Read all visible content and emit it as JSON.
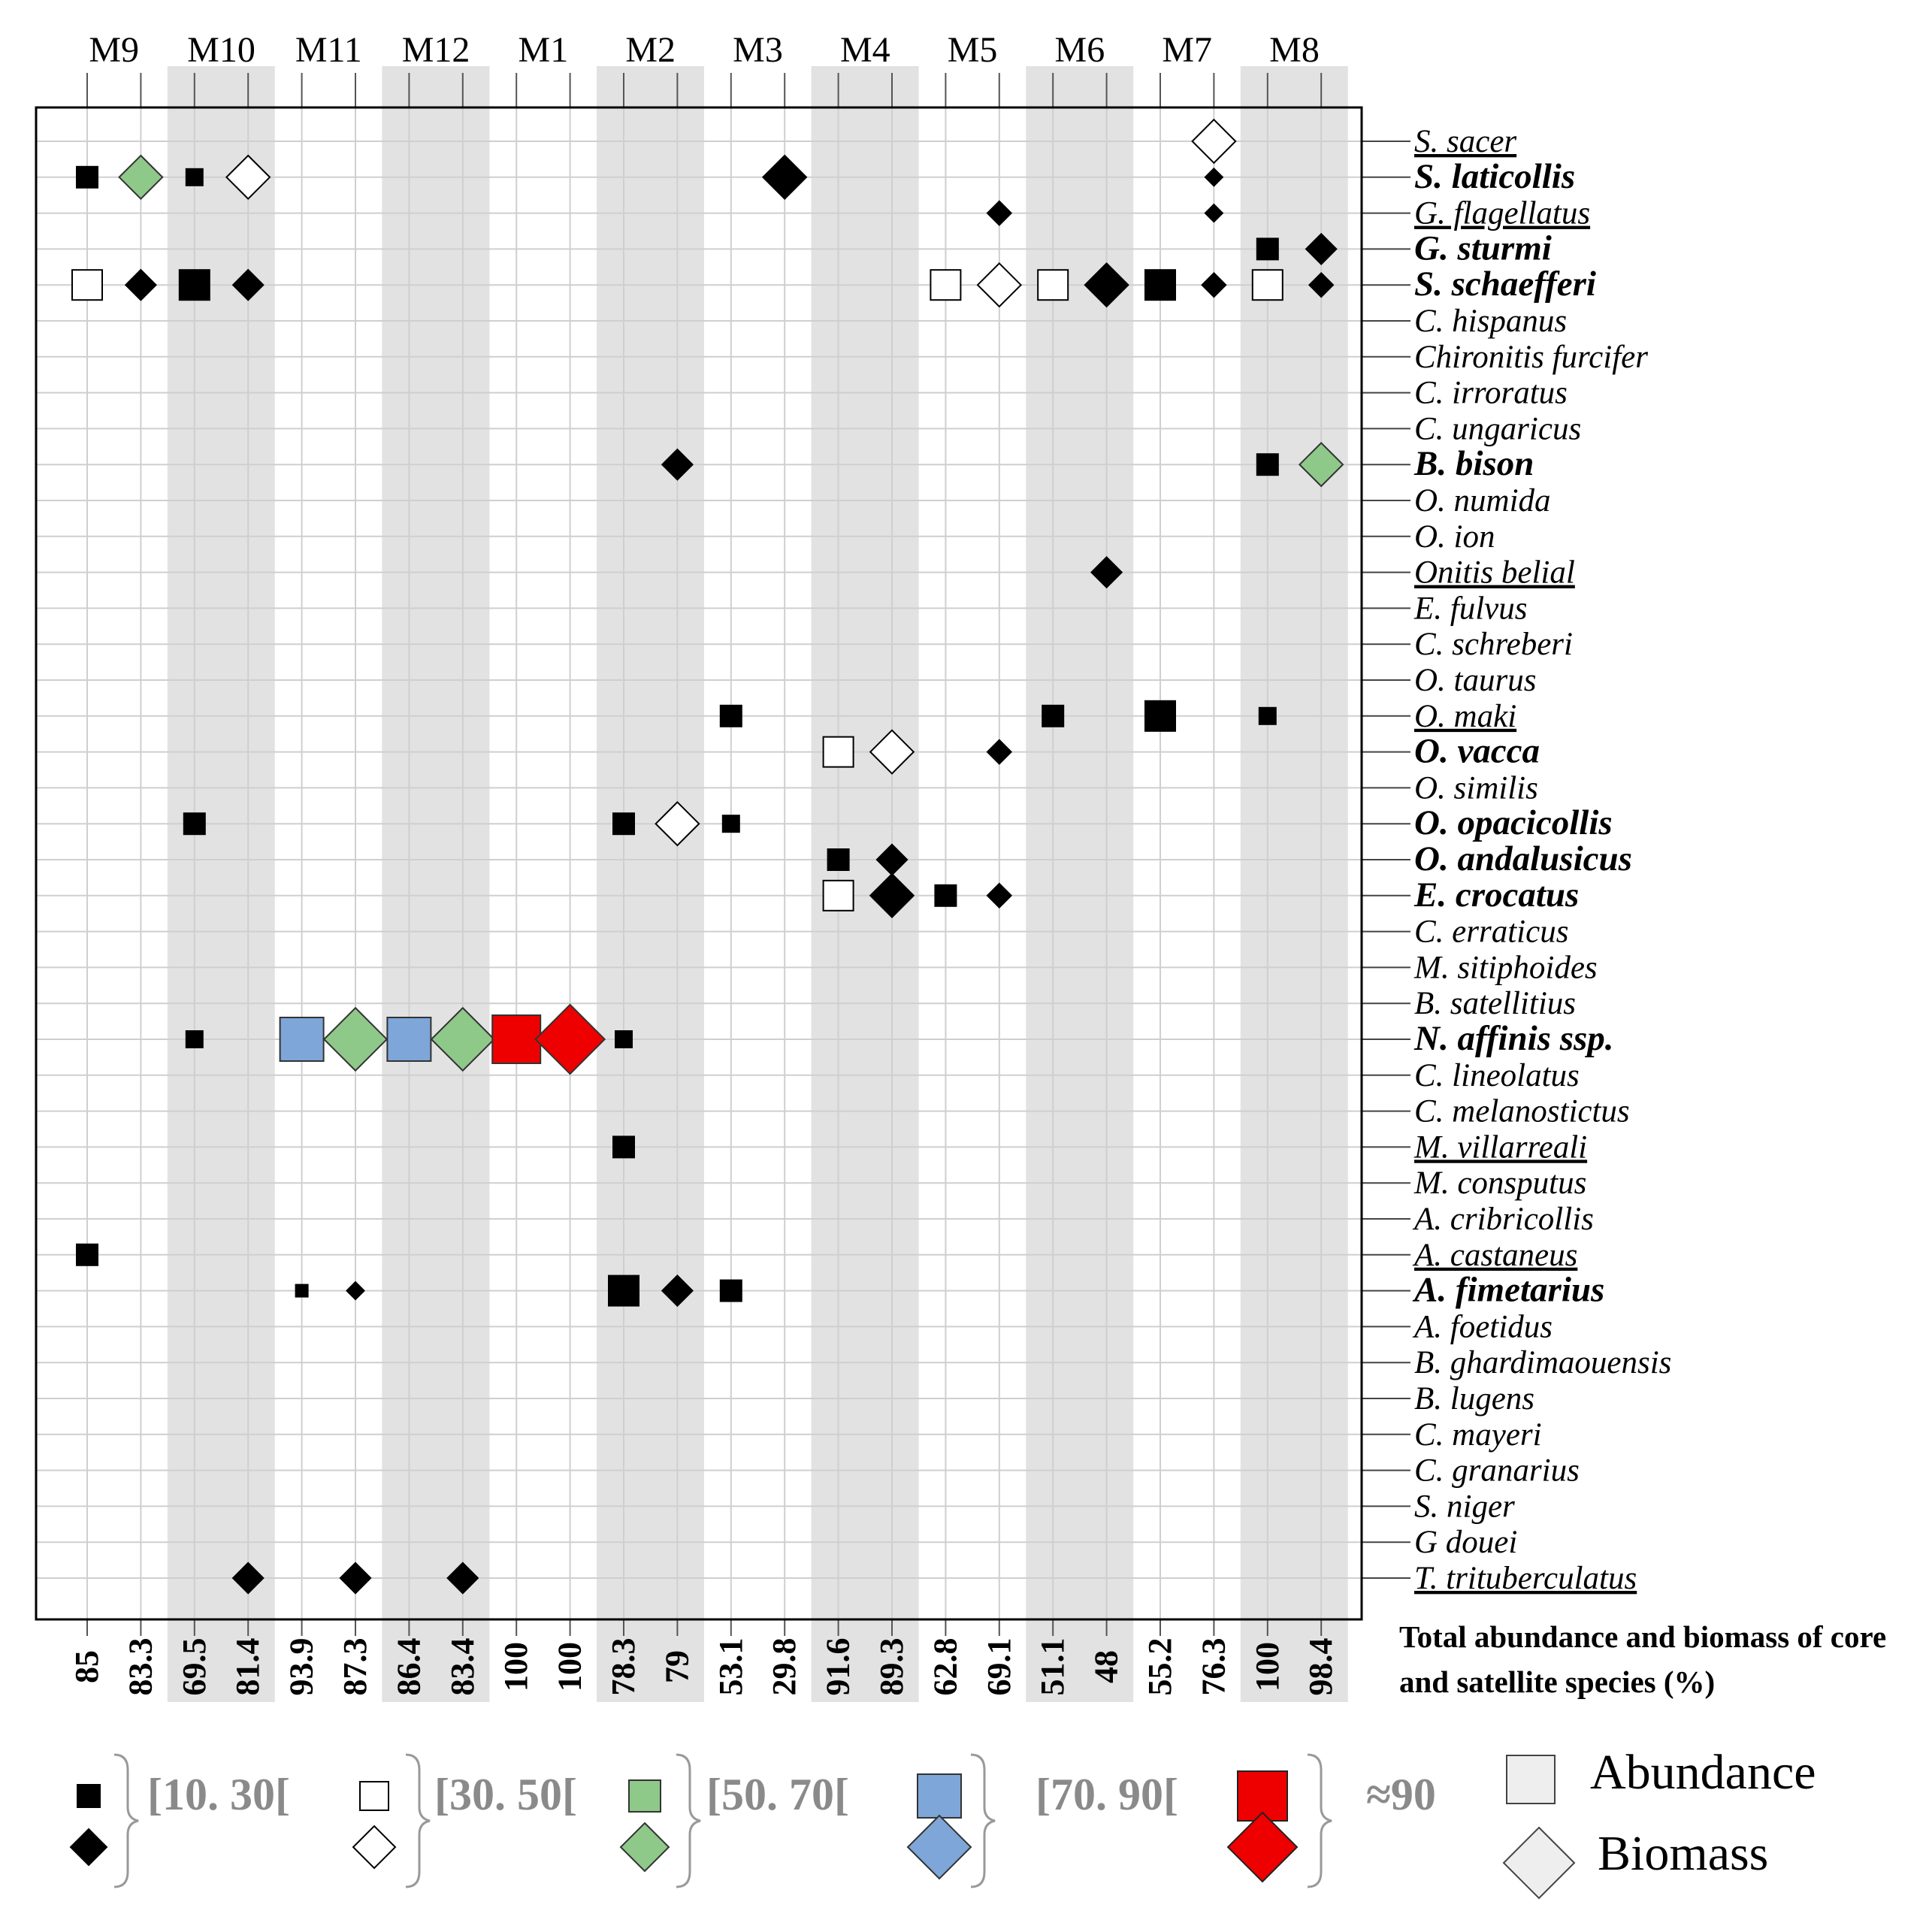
{
  "chart_data": {
    "type": "scatter",
    "site_labels": [
      "M9",
      "M10",
      "M11",
      "M12",
      "M1",
      "M2",
      "M3",
      "M4",
      "M5",
      "M6",
      "M7",
      "M8"
    ],
    "shaded_sites": [
      "M10",
      "M12",
      "M2",
      "M4",
      "M6",
      "M8"
    ],
    "totals": [
      "85",
      "83.3",
      "69.5",
      "81.4",
      "93.9",
      "87.3",
      "86.4",
      "83.4",
      "100",
      "100",
      "78.3",
      "79",
      "53.1",
      "29.8",
      "91.6",
      "89.3",
      "62.8",
      "69.1",
      "51.1",
      "48",
      "55.2",
      "76.3",
      "100",
      "98.4"
    ],
    "totals_label": "Total abundance and biomass of core and satellite species (%)",
    "species": [
      {
        "name": "S. sacer",
        "style": "underline"
      },
      {
        "name": "S. laticollis",
        "style": "bold"
      },
      {
        "name": "G. flagellatus",
        "style": "underline"
      },
      {
        "name": "G. sturmi",
        "style": "bold"
      },
      {
        "name": "S. schaefferi",
        "style": "bold"
      },
      {
        "name": "C. hispanus",
        "style": "normal"
      },
      {
        "name": "Chironitis furcifer",
        "style": "normal"
      },
      {
        "name": "C. irroratus",
        "style": "normal"
      },
      {
        "name": "C. ungaricus",
        "style": "normal"
      },
      {
        "name": "B. bison",
        "style": "bold"
      },
      {
        "name": "O. numida",
        "style": "normal"
      },
      {
        "name": "O. ion",
        "style": "normal"
      },
      {
        "name": "Onitis belial",
        "style": "underline"
      },
      {
        "name": "E. fulvus",
        "style": "normal"
      },
      {
        "name": "C. schreberi",
        "style": "normal"
      },
      {
        "name": "O. taurus",
        "style": "normal"
      },
      {
        "name": "O. maki",
        "style": "underline"
      },
      {
        "name": "O. vacca",
        "style": "bold"
      },
      {
        "name": "O. similis",
        "style": "normal"
      },
      {
        "name": "O. opacicollis",
        "style": "bold"
      },
      {
        "name": "O. andalusicus",
        "style": "bold"
      },
      {
        "name": "E. crocatus",
        "style": "bold"
      },
      {
        "name": "C. erraticus",
        "style": "normal"
      },
      {
        "name": "M. sitiphoides",
        "style": "normal"
      },
      {
        "name": "B. satellitius",
        "style": "normal"
      },
      {
        "name": "N. affinis ssp.",
        "style": "bold"
      },
      {
        "name": "C. lineolatus",
        "style": "normal"
      },
      {
        "name": "C. melanostictus",
        "style": "normal"
      },
      {
        "name": "M. villarreali",
        "style": "underline"
      },
      {
        "name": "M. consputus",
        "style": "normal"
      },
      {
        "name": "A. cribricollis",
        "style": "normal"
      },
      {
        "name": "A. castaneus",
        "style": "underline"
      },
      {
        "name": "A. fimetarius",
        "style": "bold"
      },
      {
        "name": "A. foetidus",
        "style": "normal"
      },
      {
        "name": "B. ghardimaouensis",
        "style": "normal"
      },
      {
        "name": "B. lugens",
        "style": "normal"
      },
      {
        "name": "C. mayeri",
        "style": "normal"
      },
      {
        "name": "C. granarius",
        "style": "normal"
      },
      {
        "name": "S. niger",
        "style": "normal"
      },
      {
        "name": "G douei",
        "style": "normal"
      },
      {
        "name": "T. trituberculatus",
        "style": "underline"
      }
    ],
    "points": [
      {
        "species": "S. sacer",
        "site": "M7",
        "measure": "biomass",
        "class": "30-50",
        "size": "large"
      },
      {
        "species": "S. laticollis",
        "site": "M9",
        "measure": "abundance",
        "class": "10-30",
        "size": "medium"
      },
      {
        "species": "S. laticollis",
        "site": "M9",
        "measure": "biomass",
        "class": "50-70",
        "size": "large"
      },
      {
        "species": "S. laticollis",
        "site": "M10",
        "measure": "abundance",
        "class": "10-30",
        "size": "small"
      },
      {
        "species": "S. laticollis",
        "site": "M10",
        "measure": "biomass",
        "class": "30-50",
        "size": "large"
      },
      {
        "species": "S. laticollis",
        "site": "M3",
        "measure": "biomass",
        "class": "10-30",
        "size": "large"
      },
      {
        "species": "S. laticollis",
        "site": "M7",
        "measure": "biomass",
        "class": "10-30",
        "size": "tiny"
      },
      {
        "species": "G. flagellatus",
        "site": "M5",
        "measure": "biomass",
        "class": "10-30",
        "size": "small"
      },
      {
        "species": "G. flagellatus",
        "site": "M7",
        "measure": "biomass",
        "class": "10-30",
        "size": "tiny"
      },
      {
        "species": "G. sturmi",
        "site": "M8",
        "measure": "abundance",
        "class": "10-30",
        "size": "medium"
      },
      {
        "species": "G. sturmi",
        "site": "M8",
        "measure": "biomass",
        "class": "10-30",
        "size": "medium"
      },
      {
        "species": "S. schaefferi",
        "site": "M9",
        "measure": "abundance",
        "class": "30-50",
        "size": "large"
      },
      {
        "species": "S. schaefferi",
        "site": "M9",
        "measure": "biomass",
        "class": "10-30",
        "size": "medium"
      },
      {
        "species": "S. schaefferi",
        "site": "M10",
        "measure": "abundance",
        "class": "10-30",
        "size": "large"
      },
      {
        "species": "S. schaefferi",
        "site": "M10",
        "measure": "biomass",
        "class": "10-30",
        "size": "medium"
      },
      {
        "species": "S. schaefferi",
        "site": "M5",
        "measure": "abundance",
        "class": "30-50",
        "size": "large"
      },
      {
        "species": "S. schaefferi",
        "site": "M5",
        "measure": "biomass",
        "class": "30-50",
        "size": "large"
      },
      {
        "species": "S. schaefferi",
        "site": "M6",
        "measure": "abundance",
        "class": "30-50",
        "size": "large"
      },
      {
        "species": "S. schaefferi",
        "site": "M6",
        "measure": "biomass",
        "class": "10-30",
        "size": "large"
      },
      {
        "species": "S. schaefferi",
        "site": "M7",
        "measure": "abundance",
        "class": "10-30",
        "size": "large"
      },
      {
        "species": "S. schaefferi",
        "site": "M7",
        "measure": "biomass",
        "class": "10-30",
        "size": "small"
      },
      {
        "species": "S. schaefferi",
        "site": "M8",
        "measure": "abundance",
        "class": "30-50",
        "size": "large"
      },
      {
        "species": "S. schaefferi",
        "site": "M8",
        "measure": "biomass",
        "class": "10-30",
        "size": "small"
      },
      {
        "species": "B. bison",
        "site": "M2",
        "measure": "biomass",
        "class": "10-30",
        "size": "medium"
      },
      {
        "species": "B. bison",
        "site": "M8",
        "measure": "abundance",
        "class": "10-30",
        "size": "medium"
      },
      {
        "species": "B. bison",
        "site": "M8",
        "measure": "biomass",
        "class": "50-70",
        "size": "large"
      },
      {
        "species": "Onitis belial",
        "site": "M6",
        "measure": "biomass",
        "class": "10-30",
        "size": "medium"
      },
      {
        "species": "O. maki",
        "site": "M3",
        "measure": "abundance",
        "class": "10-30",
        "size": "medium"
      },
      {
        "species": "O. maki",
        "site": "M6",
        "measure": "abundance",
        "class": "10-30",
        "size": "medium"
      },
      {
        "species": "O. maki",
        "site": "M7",
        "measure": "abundance",
        "class": "10-30",
        "size": "large"
      },
      {
        "species": "O. maki",
        "site": "M8",
        "measure": "abundance",
        "class": "10-30",
        "size": "small"
      },
      {
        "species": "O. vacca",
        "site": "M4",
        "measure": "abundance",
        "class": "30-50",
        "size": "large"
      },
      {
        "species": "O. vacca",
        "site": "M4",
        "measure": "biomass",
        "class": "30-50",
        "size": "large"
      },
      {
        "species": "O. vacca",
        "site": "M5",
        "measure": "biomass",
        "class": "10-30",
        "size": "small"
      },
      {
        "species": "O. opacicollis",
        "site": "M10",
        "measure": "abundance",
        "class": "10-30",
        "size": "medium"
      },
      {
        "species": "O. opacicollis",
        "site": "M2",
        "measure": "abundance",
        "class": "10-30",
        "size": "medium"
      },
      {
        "species": "O. opacicollis",
        "site": "M2",
        "measure": "biomass",
        "class": "30-50",
        "size": "large"
      },
      {
        "species": "O. opacicollis",
        "site": "M3",
        "measure": "abundance",
        "class": "10-30",
        "size": "small"
      },
      {
        "species": "O. andalusicus",
        "site": "M4",
        "measure": "abundance",
        "class": "10-30",
        "size": "medium"
      },
      {
        "species": "O. andalusicus",
        "site": "M4",
        "measure": "biomass",
        "class": "10-30",
        "size": "medium"
      },
      {
        "species": "E. crocatus",
        "site": "M4",
        "measure": "abundance",
        "class": "30-50",
        "size": "large"
      },
      {
        "species": "E. crocatus",
        "site": "M4",
        "measure": "biomass",
        "class": "10-30",
        "size": "large"
      },
      {
        "species": "E. crocatus",
        "site": "M5",
        "measure": "abundance",
        "class": "10-30",
        "size": "medium"
      },
      {
        "species": "E. crocatus",
        "site": "M5",
        "measure": "biomass",
        "class": "10-30",
        "size": "small"
      },
      {
        "species": "N. affinis ssp.",
        "site": "M10",
        "measure": "abundance",
        "class": "10-30",
        "size": "small"
      },
      {
        "species": "N. affinis ssp.",
        "site": "M11",
        "measure": "abundance",
        "class": "70-90",
        "size": "xlarge"
      },
      {
        "species": "N. affinis ssp.",
        "site": "M11",
        "measure": "biomass",
        "class": "50-70",
        "size": "xlarge"
      },
      {
        "species": "N. affinis ssp.",
        "site": "M12",
        "measure": "abundance",
        "class": "70-90",
        "size": "xlarge"
      },
      {
        "species": "N. affinis ssp.",
        "site": "M12",
        "measure": "biomass",
        "class": "50-70",
        "size": "xlarge"
      },
      {
        "species": "N. affinis ssp.",
        "site": "M1",
        "measure": "abundance",
        "class": ">90",
        "size": "xxlarge"
      },
      {
        "species": "N. affinis ssp.",
        "site": "M1",
        "measure": "biomass",
        "class": ">90",
        "size": "xxlarge"
      },
      {
        "species": "N. affinis ssp.",
        "site": "M2",
        "measure": "abundance",
        "class": "10-30",
        "size": "small"
      },
      {
        "species": "M. villarreali",
        "site": "M2",
        "measure": "abundance",
        "class": "10-30",
        "size": "medium"
      },
      {
        "species": "A. castaneus",
        "site": "M9",
        "measure": "abundance",
        "class": "10-30",
        "size": "medium"
      },
      {
        "species": "A. fimetarius",
        "site": "M11",
        "measure": "abundance",
        "class": "10-30",
        "size": "tiny"
      },
      {
        "species": "A. fimetarius",
        "site": "M11",
        "measure": "biomass",
        "class": "10-30",
        "size": "tiny"
      },
      {
        "species": "A. fimetarius",
        "site": "M2",
        "measure": "abundance",
        "class": "10-30",
        "size": "large"
      },
      {
        "species": "A. fimetarius",
        "site": "M2",
        "measure": "biomass",
        "class": "10-30",
        "size": "medium"
      },
      {
        "species": "A. fimetarius",
        "site": "M3",
        "measure": "abundance",
        "class": "10-30",
        "size": "medium"
      },
      {
        "species": "T. trituberculatus",
        "site": "M10",
        "measure": "biomass",
        "class": "10-30",
        "size": "medium"
      },
      {
        "species": "T. trituberculatus",
        "site": "M11",
        "measure": "biomass",
        "class": "10-30",
        "size": "medium"
      },
      {
        "species": "T. trituberculatus",
        "site": "M12",
        "measure": "biomass",
        "class": "10-30",
        "size": "medium"
      }
    ],
    "legend": {
      "classes": [
        {
          "label": "[10. 30[",
          "fill": "#000000",
          "stroke": "#000000"
        },
        {
          "label": "[30. 50[",
          "fill": "#ffffff",
          "stroke": "#000000"
        },
        {
          "label": "[50. 70[",
          "fill": "#8fc98a",
          "stroke": "#333333"
        },
        {
          "label": "[70. 90[",
          "fill": "#7ea6d8",
          "stroke": "#333333"
        },
        {
          "label": "≈90",
          "fill": "#ee0000",
          "stroke": "#222222"
        }
      ],
      "abundance_label": "Abundance",
      "biomass_label": "Biomass"
    },
    "colors": {
      "10-30": "#000000",
      "30-50": "#ffffff",
      "50-70": "#8fc98a",
      "70-90": "#7ea6d8",
      ">90": "#ee0000",
      "shade": "#e2e2e2",
      "grid": "#cfcfcf"
    },
    "grid": true
  }
}
